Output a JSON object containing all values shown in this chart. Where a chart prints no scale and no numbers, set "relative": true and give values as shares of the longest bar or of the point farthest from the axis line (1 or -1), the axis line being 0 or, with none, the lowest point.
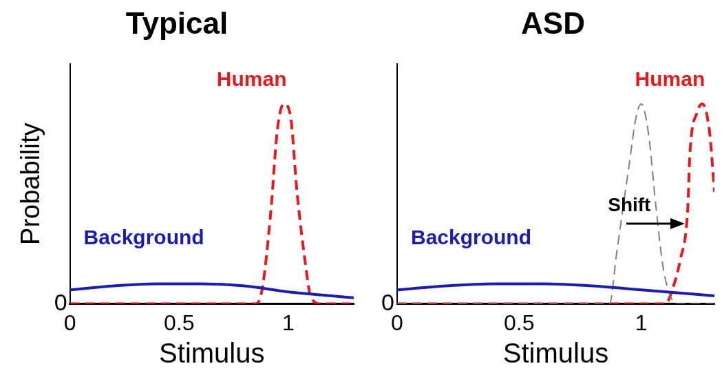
{
  "chart_data": [
    {
      "type": "line",
      "title": "Typical",
      "xlabel": "Stimulus",
      "ylabel": "Probability",
      "relative": true,
      "xlim": [
        0,
        1.3
      ],
      "xticks": [
        0,
        0.5,
        1
      ],
      "legend": false,
      "marker": "none",
      "annotations": [
        "0"
      ],
      "series": [
        {
          "name": "Background",
          "color": "#1c1cb4",
          "line_style": "solid",
          "x": [
            0,
            0.2,
            0.4,
            0.6,
            0.8,
            1.0,
            1.2,
            1.3
          ],
          "values": [
            0.07,
            0.09,
            0.1,
            0.1,
            0.09,
            0.06,
            0.04,
            0.03
          ]
        },
        {
          "name": "Human",
          "color": "#e8191c",
          "line_style": "dashed",
          "x": [
            0,
            0.5,
            0.85,
            0.88,
            0.92,
            0.95,
            0.98,
            1.01,
            1.04,
            1.075,
            1.105,
            1.15,
            1.3
          ],
          "values": [
            0,
            0,
            0,
            0.07,
            0.46,
            0.87,
            1,
            0.94,
            0.56,
            0.23,
            0.03,
            0,
            0
          ]
        }
      ]
    },
    {
      "type": "line",
      "title": "ASD",
      "xlabel": "Stimulus",
      "relative": true,
      "xlim": [
        0,
        1.3
      ],
      "xticks": [
        0,
        0.5,
        1
      ],
      "legend": false,
      "marker": "none",
      "annotations": [
        "0",
        {
          "text": "Shift",
          "x": 1.18,
          "y": 0.4
        }
      ],
      "series": [
        {
          "name": "Background",
          "color": "#1c1cb4",
          "line_style": "solid",
          "x": [
            0,
            0.2,
            0.4,
            0.6,
            0.8,
            1.0,
            1.2,
            1.3
          ],
          "values": [
            0.07,
            0.09,
            0.1,
            0.1,
            0.09,
            0.07,
            0.05,
            0.04
          ]
        },
        {
          "color": "#808080",
          "line_style": "dashed",
          "x": [
            0,
            0.5,
            0.87,
            0.9,
            0.95,
            0.98,
            1.0,
            1.03,
            1.06,
            1.09,
            1.12,
            1.14,
            1.3
          ],
          "values": [
            0,
            0,
            0,
            0.26,
            0.69,
            0.94,
            1,
            0.85,
            0.49,
            0.18,
            0.04,
            0,
            0
          ]
        },
        {
          "name": "Human",
          "color": "#e8191c",
          "line_style": "dashed",
          "x": [
            0,
            0.5,
            1.1,
            1.13,
            1.16,
            1.19,
            1.2,
            1.23,
            1.25,
            1.28,
            1.3
          ],
          "values": [
            0,
            0,
            0,
            0.08,
            0.22,
            0.46,
            0.76,
            0.96,
            1,
            0.86,
            0.56
          ]
        }
      ]
    }
  ]
}
